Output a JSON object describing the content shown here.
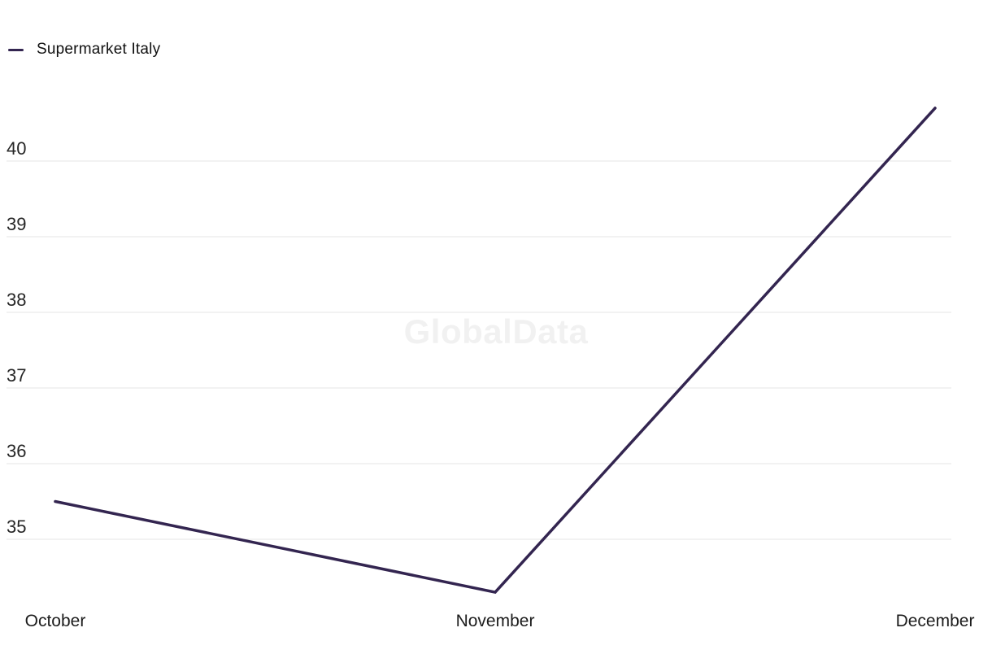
{
  "legend": {
    "label": "Supermarket Italy",
    "color": "#332550"
  },
  "watermark": "GlobalData",
  "chart_data": {
    "type": "line",
    "title": "",
    "x": [
      "October",
      "November",
      "December"
    ],
    "series": [
      {
        "name": "Supermarket Italy",
        "values": [
          35.5,
          34.3,
          40.7
        ],
        "color": "#332550"
      }
    ],
    "yticks": [
      35,
      36,
      37,
      38,
      39,
      40
    ],
    "ylim": [
      34.2,
      40.8
    ],
    "grid": true,
    "grid_color": "#e4e4e4",
    "legend_position": "top-left",
    "xlabel": "",
    "ylabel": ""
  }
}
